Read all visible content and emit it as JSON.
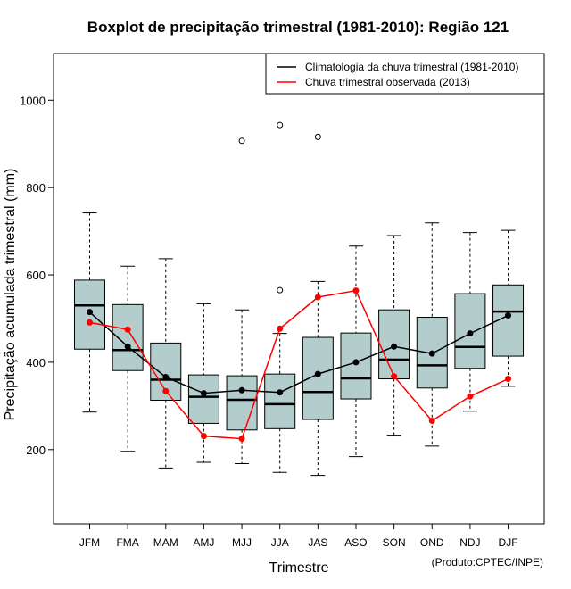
{
  "chart_data": {
    "type": "boxplot",
    "title": "Boxplot de precipitação trimestral (1981-2010): Região 121",
    "xlabel": "Trimestre",
    "ylabel": "Precipitação acumulada trimestral (mm)",
    "ylim": [
      30,
      1085
    ],
    "yticks": [
      200,
      400,
      600,
      800,
      1000
    ],
    "categories": [
      "JFM",
      "FMA",
      "MAM",
      "AMJ",
      "MJJ",
      "JJA",
      "JAS",
      "ASO",
      "SON",
      "OND",
      "NDJ",
      "DJF"
    ],
    "boxes": [
      {
        "whisker_low": 286,
        "q1": 430,
        "median": 530,
        "q3": 588,
        "whisker_high": 742,
        "outliers": []
      },
      {
        "whisker_low": 196,
        "q1": 381,
        "median": 428,
        "q3": 532,
        "whisker_high": 620,
        "outliers": []
      },
      {
        "whisker_low": 158,
        "q1": 313,
        "median": 360,
        "q3": 444,
        "whisker_high": 637,
        "outliers": []
      },
      {
        "whisker_low": 171,
        "q1": 260,
        "median": 321,
        "q3": 371,
        "whisker_high": 534,
        "outliers": []
      },
      {
        "whisker_low": 168,
        "q1": 245,
        "median": 314,
        "q3": 369,
        "whisker_high": 520,
        "outliers": [
          907
        ]
      },
      {
        "whisker_low": 148,
        "q1": 248,
        "median": 304,
        "q3": 373,
        "whisker_high": 466,
        "outliers": [
          565,
          943
        ]
      },
      {
        "whisker_low": 141,
        "q1": 269,
        "median": 332,
        "q3": 457,
        "whisker_high": 585,
        "outliers": [
          916
        ]
      },
      {
        "whisker_low": 184,
        "q1": 316,
        "median": 363,
        "q3": 467,
        "whisker_high": 666,
        "outliers": []
      },
      {
        "whisker_low": 233,
        "q1": 362,
        "median": 406,
        "q3": 520,
        "whisker_high": 690,
        "outliers": []
      },
      {
        "whisker_low": 208,
        "q1": 341,
        "median": 393,
        "q3": 503,
        "whisker_high": 719,
        "outliers": []
      },
      {
        "whisker_low": 288,
        "q1": 386,
        "median": 435,
        "q3": 557,
        "whisker_high": 697,
        "outliers": []
      },
      {
        "whisker_low": 345,
        "q1": 414,
        "median": 516,
        "q3": 577,
        "whisker_high": 702,
        "outliers": []
      }
    ],
    "series": [
      {
        "name": "Climatologia da chuva trimestral (1981-2010)",
        "color": "#000000",
        "values": [
          515,
          436,
          366,
          329,
          336,
          331,
          373,
          400,
          436,
          420,
          466,
          507
        ]
      },
      {
        "name": "Chuva trimestral observada (2013)",
        "color": "#ff0000",
        "values": [
          491,
          475,
          334,
          231,
          225,
          477,
          549,
          564,
          368,
          266,
          322,
          362
        ]
      }
    ],
    "legend_position": "top-right",
    "box_fill": "#b3cccc",
    "credit": "(Produto:CPTEC/INPE)"
  }
}
